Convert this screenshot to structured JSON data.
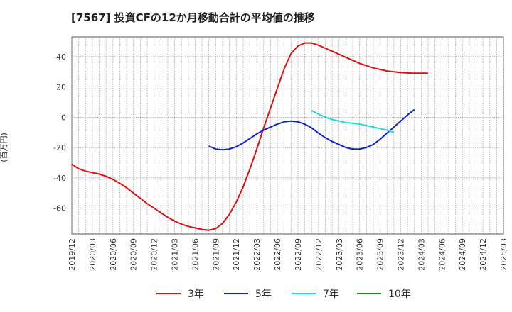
{
  "chart_data": {
    "type": "line",
    "title": "[7567]  投資CFの12か月移動合計の平均値の推移",
    "ylabel": "(百万円)",
    "xlabel": "",
    "ylim": [
      -77,
      53
    ],
    "yticks": [
      40,
      20,
      0,
      -20,
      -40,
      -60
    ],
    "xticks": [
      "2019/12",
      "2020/03",
      "2020/06",
      "2020/09",
      "2020/12",
      "2021/03",
      "2021/06",
      "2021/09",
      "2021/12",
      "2022/03",
      "2022/06",
      "2022/09",
      "2022/12",
      "2023/03",
      "2023/06",
      "2023/09",
      "2023/12",
      "2024/03",
      "2024/06",
      "2024/09",
      "2024/12",
      "2025/03"
    ],
    "grid": true,
    "legend_position": "bottom",
    "series": [
      {
        "name": "3年",
        "color": "#dd1111",
        "points": [
          [
            "2019/12",
            -31
          ],
          [
            "2020/01",
            -34
          ],
          [
            "2020/02",
            -35.5
          ],
          [
            "2020/03",
            -36.5
          ],
          [
            "2020/04",
            -37.5
          ],
          [
            "2020/05",
            -39
          ],
          [
            "2020/06",
            -41
          ],
          [
            "2020/07",
            -43.5
          ],
          [
            "2020/08",
            -46.5
          ],
          [
            "2020/09",
            -50
          ],
          [
            "2020/10",
            -53.5
          ],
          [
            "2020/11",
            -57
          ],
          [
            "2020/12",
            -60
          ],
          [
            "2021/01",
            -63
          ],
          [
            "2021/02",
            -66
          ],
          [
            "2021/03",
            -68.5
          ],
          [
            "2021/04",
            -70.5
          ],
          [
            "2021/05",
            -72
          ],
          [
            "2021/06",
            -73
          ],
          [
            "2021/07",
            -74
          ],
          [
            "2021/08",
            -74.5
          ],
          [
            "2021/09",
            -73.5
          ],
          [
            "2021/10",
            -70
          ],
          [
            "2021/11",
            -64
          ],
          [
            "2021/12",
            -56
          ],
          [
            "2022/01",
            -46
          ],
          [
            "2022/02",
            -34
          ],
          [
            "2022/03",
            -21
          ],
          [
            "2022/04",
            -7
          ],
          [
            "2022/05",
            6
          ],
          [
            "2022/06",
            19
          ],
          [
            "2022/07",
            32
          ],
          [
            "2022/08",
            42
          ],
          [
            "2022/09",
            47
          ],
          [
            "2022/10",
            49
          ],
          [
            "2022/11",
            49
          ],
          [
            "2022/12",
            47.5
          ],
          [
            "2023/01",
            45.5
          ],
          [
            "2023/02",
            43.5
          ],
          [
            "2023/03",
            41.5
          ],
          [
            "2023/04",
            39.5
          ],
          [
            "2023/05",
            37.5
          ],
          [
            "2023/06",
            35.5
          ],
          [
            "2023/07",
            34
          ],
          [
            "2023/08",
            32.5
          ],
          [
            "2023/09",
            31.5
          ],
          [
            "2023/10",
            30.5
          ],
          [
            "2023/11",
            30
          ],
          [
            "2023/12",
            29.5
          ],
          [
            "2024/01",
            29.2
          ],
          [
            "2024/02",
            29
          ],
          [
            "2024/03",
            29
          ],
          [
            "2024/04",
            29
          ]
        ]
      },
      {
        "name": "5年",
        "color": "#1122cc",
        "points": [
          [
            "2021/08",
            -19
          ],
          [
            "2021/09",
            -21
          ],
          [
            "2021/10",
            -21.5
          ],
          [
            "2021/11",
            -21
          ],
          [
            "2021/12",
            -19.5
          ],
          [
            "2022/01",
            -17
          ],
          [
            "2022/02",
            -14
          ],
          [
            "2022/03",
            -11
          ],
          [
            "2022/04",
            -8.5
          ],
          [
            "2022/05",
            -6.5
          ],
          [
            "2022/06",
            -4.5
          ],
          [
            "2022/07",
            -3
          ],
          [
            "2022/08",
            -2.5
          ],
          [
            "2022/09",
            -3
          ],
          [
            "2022/10",
            -4.5
          ],
          [
            "2022/11",
            -7
          ],
          [
            "2022/12",
            -10.5
          ],
          [
            "2023/01",
            -13.5
          ],
          [
            "2023/02",
            -16
          ],
          [
            "2023/03",
            -18
          ],
          [
            "2023/04",
            -20
          ],
          [
            "2023/05",
            -21
          ],
          [
            "2023/06",
            -21
          ],
          [
            "2023/07",
            -20
          ],
          [
            "2023/08",
            -18
          ],
          [
            "2023/09",
            -14.5
          ],
          [
            "2023/10",
            -10.5
          ],
          [
            "2023/11",
            -6.5
          ],
          [
            "2023/12",
            -2.5
          ],
          [
            "2024/01",
            1.5
          ],
          [
            "2024/02",
            5
          ]
        ]
      },
      {
        "name": "7年",
        "color": "#22dddd",
        "points": [
          [
            "2022/11",
            4.5
          ],
          [
            "2022/12",
            2
          ],
          [
            "2023/01",
            0
          ],
          [
            "2023/02",
            -1.5
          ],
          [
            "2023/03",
            -2.5
          ],
          [
            "2023/04",
            -3.5
          ],
          [
            "2023/05",
            -4
          ],
          [
            "2023/06",
            -4.5
          ],
          [
            "2023/07",
            -5.5
          ],
          [
            "2023/08",
            -6.5
          ],
          [
            "2023/09",
            -7.5
          ],
          [
            "2023/10",
            -8.5
          ],
          [
            "2023/11",
            -10
          ]
        ]
      },
      {
        "name": "10年",
        "color": "#228822",
        "points": []
      }
    ]
  }
}
